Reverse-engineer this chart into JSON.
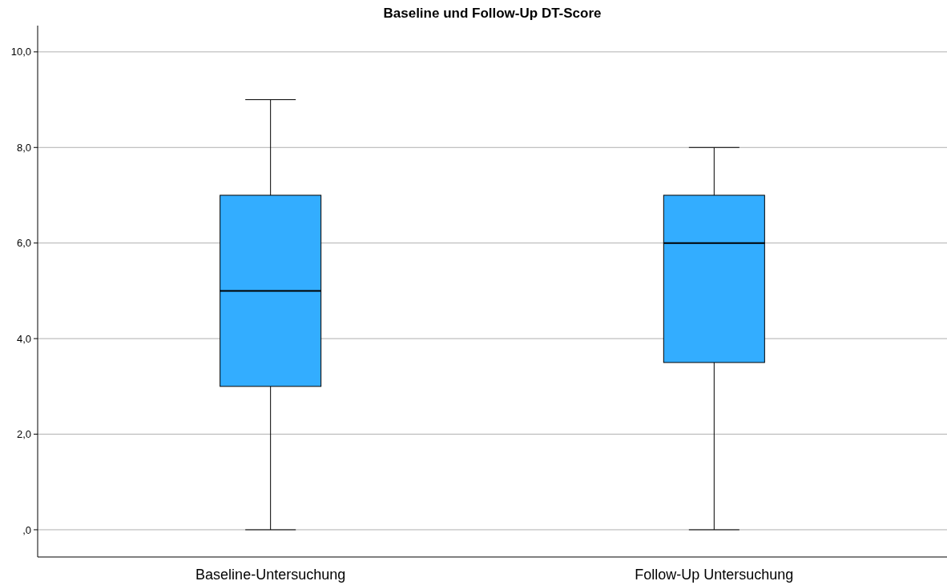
{
  "chart_data": {
    "type": "box",
    "title": "Baseline und Follow-Up DT-Score",
    "categories": [
      "Baseline-Untersuchung",
      "Follow-Up Untersuchung"
    ],
    "color": "#33adff",
    "boxes": [
      {
        "low": 0,
        "q1": 3,
        "median": 5,
        "q3": 7,
        "high": 9
      },
      {
        "low": 0,
        "q1": 3.5,
        "median": 6,
        "q3": 7,
        "high": 8
      }
    ],
    "ylim": [
      -0.57,
      10.55
    ],
    "yticks": [
      {
        "value": 0,
        "label": ",0"
      },
      {
        "value": 2,
        "label": "2,0"
      },
      {
        "value": 4,
        "label": "4,0"
      },
      {
        "value": 6,
        "label": "6,0"
      },
      {
        "value": 8,
        "label": "8,0"
      },
      {
        "value": 10,
        "label": "10,0"
      }
    ],
    "grid": "y"
  }
}
